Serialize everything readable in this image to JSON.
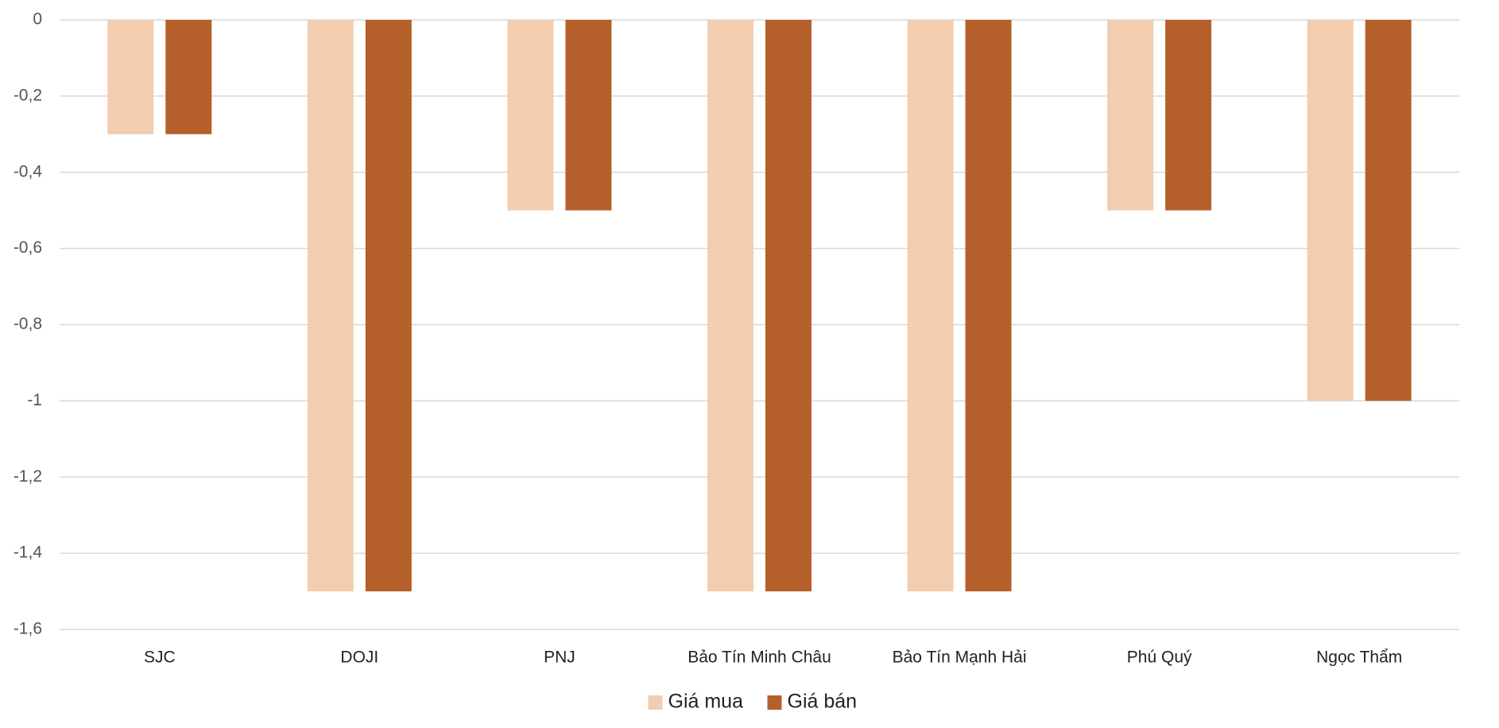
{
  "chart_data": {
    "type": "bar",
    "categories": [
      "SJC",
      "DOJI",
      "PNJ",
      "Bảo Tín Minh Châu",
      "Bảo Tín Mạnh Hải",
      "Phú Quý",
      "Ngọc Thẩm"
    ],
    "series": [
      {
        "name": "Giá mua",
        "color": "#f2cdb0",
        "values": [
          -0.3,
          -1.5,
          -0.5,
          -1.5,
          -1.5,
          -0.5,
          -1
        ]
      },
      {
        "name": "Giá bán",
        "color": "#b5602b",
        "values": [
          -0.3,
          -1.5,
          -0.5,
          -1.5,
          -1.5,
          -0.5,
          -1
        ]
      }
    ],
    "ylim": [
      -1.6,
      0
    ],
    "yticks": [
      0,
      {
        "value": -0.2,
        "label": "-0,2"
      },
      {
        "value": -0.4,
        "label": "-0,4"
      },
      {
        "value": -0.6,
        "label": "-0,6"
      },
      {
        "value": -0.8,
        "label": "-0,8"
      },
      -1,
      {
        "value": -1.2,
        "label": "-1,2"
      },
      {
        "value": -1.4,
        "label": "-1,4"
      },
      {
        "value": -1.6,
        "label": "-1,6"
      }
    ],
    "grid": true,
    "legend": "bottom"
  }
}
